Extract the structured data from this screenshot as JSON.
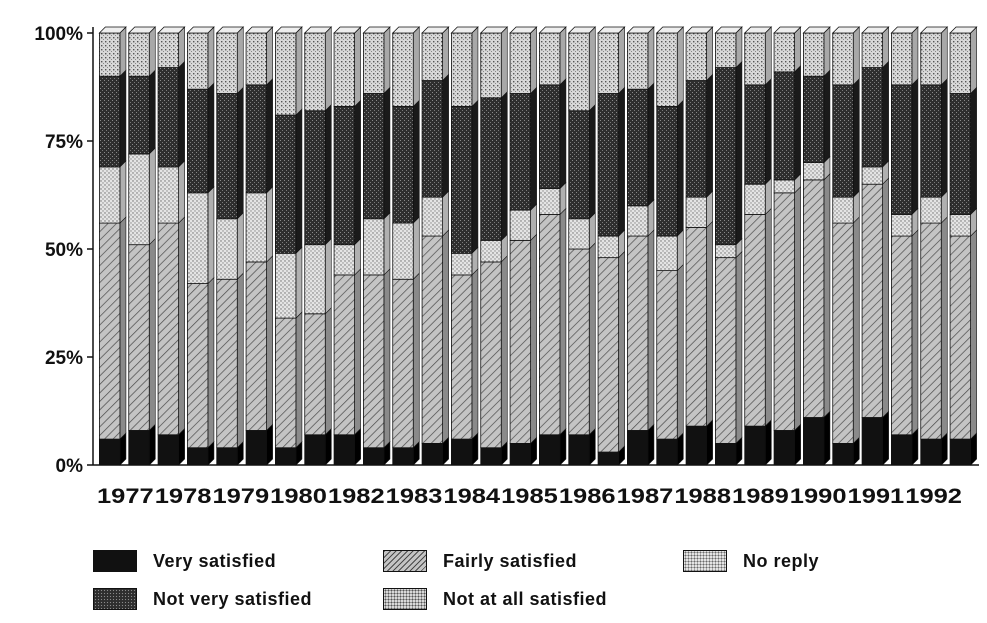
{
  "chart_data": {
    "type": "bar",
    "stacked": true,
    "percent": true,
    "categories": [
      "1977",
      "1977",
      "1978",
      "1978",
      "1979",
      "1979",
      "1980",
      "1980",
      "1982",
      "1982",
      "1983",
      "1983",
      "1984",
      "1984",
      "1985",
      "1985",
      "1986",
      "1986",
      "1987",
      "1987",
      "1988",
      "1988",
      "1989",
      "1989",
      "1990",
      "1990",
      "1991",
      "1991",
      "1992",
      "1992"
    ],
    "x_tick_labels": [
      "1977",
      "1978",
      "1979",
      "1980",
      "1982",
      "1983",
      "1984",
      "1985",
      "1986",
      "1987",
      "1988",
      "1989",
      "1990",
      "1991",
      "1992"
    ],
    "series": [
      {
        "name": "Very satisfied",
        "values": [
          6,
          8,
          7,
          4,
          4,
          8,
          4,
          7,
          7,
          4,
          4,
          5,
          6,
          4,
          5,
          7,
          7,
          3,
          8,
          6,
          9,
          5,
          9,
          8,
          11,
          5,
          11,
          7,
          6,
          6
        ]
      },
      {
        "name": "Fairly satisfied",
        "values": [
          50,
          43,
          49,
          38,
          39,
          39,
          30,
          28,
          37,
          40,
          39,
          48,
          38,
          43,
          47,
          51,
          43,
          45,
          45,
          39,
          46,
          43,
          49,
          55,
          55,
          51,
          54,
          46,
          50,
          47
        ]
      },
      {
        "name": "No reply",
        "values": [
          13,
          21,
          13,
          21,
          14,
          16,
          15,
          16,
          7,
          13,
          13,
          9,
          5,
          5,
          7,
          6,
          7,
          5,
          7,
          8,
          7,
          3,
          7,
          3,
          4,
          6,
          4,
          5,
          6,
          5
        ]
      },
      {
        "name": "Not very satisfied",
        "values": [
          21,
          18,
          23,
          24,
          29,
          25,
          32,
          31,
          32,
          29,
          27,
          27,
          34,
          33,
          27,
          24,
          25,
          33,
          27,
          30,
          27,
          41,
          23,
          25,
          20,
          26,
          23,
          30,
          26,
          28
        ]
      },
      {
        "name": "Not at all satisfied",
        "values": [
          10,
          10,
          8,
          13,
          14,
          12,
          19,
          18,
          17,
          14,
          17,
          11,
          17,
          15,
          14,
          12,
          18,
          14,
          13,
          17,
          11,
          8,
          12,
          9,
          10,
          12,
          8,
          12,
          12,
          14
        ]
      }
    ],
    "ylim": [
      0,
      100
    ],
    "y_ticks": [
      0,
      25,
      50,
      75,
      100
    ],
    "y_tick_labels": [
      "0%",
      "25%",
      "50%",
      "75%",
      "100%"
    ],
    "legend_position": "bottom",
    "grid": false,
    "colors": {
      "Very satisfied": "#111111",
      "Fairly satisfied": "#bdbdbd",
      "No reply": "#e2e2e2",
      "Not very satisfied": "#3a3a3a",
      "Not at all satisfied": "#d6d6d6"
    }
  }
}
